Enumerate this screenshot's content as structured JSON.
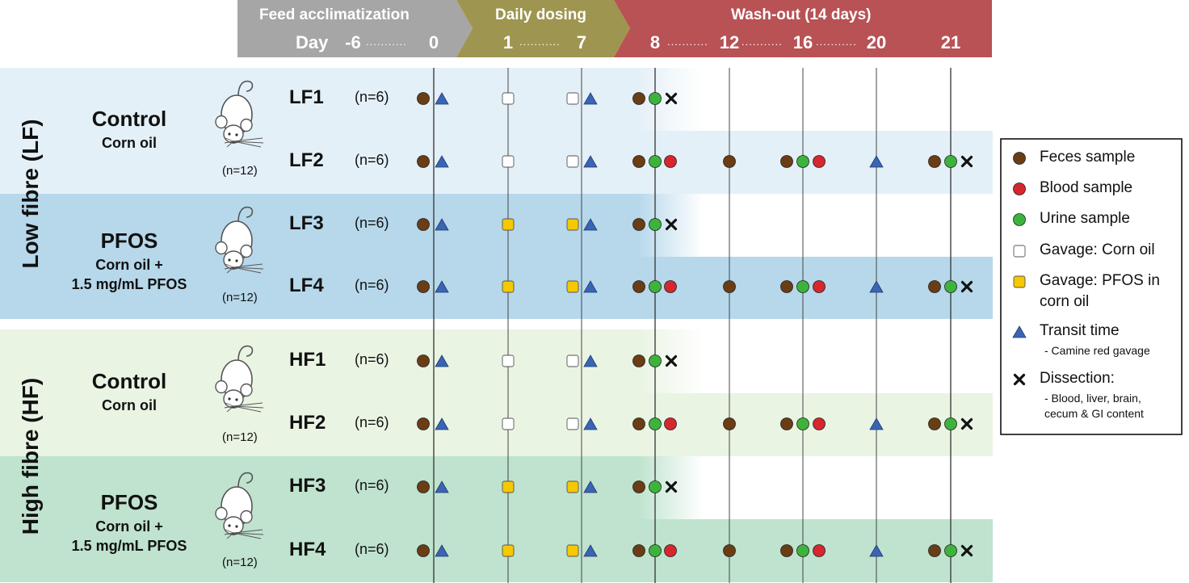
{
  "header": {
    "phases": [
      {
        "label": "Feed acclimatization",
        "color": "#a6a6a6"
      },
      {
        "label": "Daily dosing",
        "color": "#9e9550"
      },
      {
        "label": "Wash-out (14 days)",
        "color": "#b85255"
      }
    ],
    "day_label": "Day",
    "days": [
      {
        "label": "-6",
        "value": -6
      },
      {
        "label": "0",
        "value": 0
      },
      {
        "label": "1",
        "value": 1
      },
      {
        "label": "7",
        "value": 7
      },
      {
        "label": "8",
        "value": 8
      },
      {
        "label": "12",
        "value": 12
      },
      {
        "label": "16",
        "value": 16
      },
      {
        "label": "20",
        "value": 20
      },
      {
        "label": "21",
        "value": 21
      }
    ],
    "dots": "..........."
  },
  "groups": [
    {
      "title": "Control",
      "sub": [
        "Corn oil"
      ],
      "n": "(n=12)",
      "fibre": "LF"
    },
    {
      "title": "PFOS",
      "sub": [
        "Corn oil +",
        "1.5 mg/mL PFOS"
      ],
      "n": "(n=12)",
      "fibre": "LF"
    },
    {
      "title": "Control",
      "sub": [
        "Corn oil"
      ],
      "n": "(n=12)",
      "fibre": "HF"
    },
    {
      "title": "PFOS",
      "sub": [
        "Corn oil +",
        "1.5 mg/mL PFOS"
      ],
      "n": "(n=12)",
      "fibre": "HF"
    }
  ],
  "side_labels": {
    "LF": "Low fibre (LF)",
    "HF": "High fibre (HF)"
  },
  "rows": [
    {
      "label": "LF1",
      "n": "(n=6)",
      "dose": "corn",
      "washout": false
    },
    {
      "label": "LF2",
      "n": "(n=6)",
      "dose": "corn",
      "washout": true
    },
    {
      "label": "LF3",
      "n": "(n=6)",
      "dose": "pfos",
      "washout": false
    },
    {
      "label": "LF4",
      "n": "(n=6)",
      "dose": "pfos",
      "washout": true
    },
    {
      "label": "HF1",
      "n": "(n=6)",
      "dose": "corn",
      "washout": false
    },
    {
      "label": "HF2",
      "n": "(n=6)",
      "dose": "corn",
      "washout": true
    },
    {
      "label": "HF3",
      "n": "(n=6)",
      "dose": "pfos",
      "washout": false
    },
    {
      "label": "HF4",
      "n": "(n=6)",
      "dose": "pfos",
      "washout": true
    }
  ],
  "legend": [
    {
      "key": "feces",
      "lines": [
        "Feces sample"
      ],
      "sub": []
    },
    {
      "key": "blood",
      "lines": [
        "Blood sample"
      ],
      "sub": []
    },
    {
      "key": "urine",
      "lines": [
        "Urine sample"
      ],
      "sub": []
    },
    {
      "key": "gav-corn",
      "lines": [
        "Gavage: Corn oil"
      ],
      "sub": []
    },
    {
      "key": "gav-pfos",
      "lines": [
        "Gavage: PFOS in",
        "corn oil"
      ],
      "sub": []
    },
    {
      "key": "transit",
      "lines": [
        "Transit time"
      ],
      "sub": [
        "- Camine red gavage"
      ]
    },
    {
      "key": "dissect",
      "lines": [
        "Dissection:"
      ],
      "sub": [
        "- Blood, liver, brain,",
        "cecum & GI content"
      ]
    }
  ],
  "colors": {
    "feces": "#6b3d14",
    "blood": "#d7262e",
    "urine": "#3cb43c",
    "gav_corn": "#ffffff",
    "gav_pfos": "#f5c800",
    "transit": "#3a64b4",
    "lf_light": "#e4f0f7",
    "lf_dark": "#b7d8eb",
    "hf_light": "#e9f4e3",
    "hf_dark": "#bfe3ce"
  }
}
